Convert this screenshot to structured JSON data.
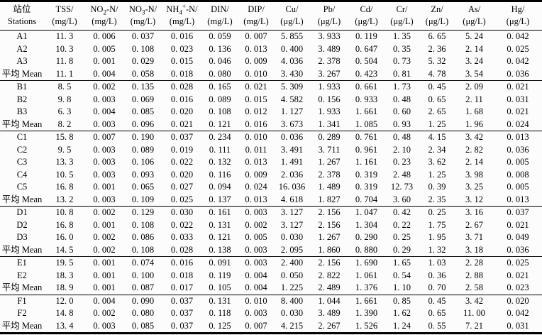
{
  "page": {
    "background": "#fcfcfc",
    "text_color": "#000000",
    "rule_color": "#000000"
  },
  "table": {
    "columns": [
      {
        "line1": [
          {
            "t": "站位"
          }
        ],
        "line2": "Stations"
      },
      {
        "line1": [
          {
            "t": "TSS/"
          }
        ],
        "line2": "(mg/L)"
      },
      {
        "line1": [
          {
            "t": "NO"
          },
          {
            "sub": "2"
          },
          {
            "t": "-N/"
          }
        ],
        "line2": "(mg/L)"
      },
      {
        "line1": [
          {
            "t": "NO"
          },
          {
            "sub": "3"
          },
          {
            "t": "-N/"
          }
        ],
        "line2": "(mg/L)"
      },
      {
        "line1": [
          {
            "t": "NH"
          },
          {
            "sub": "4"
          },
          {
            "sup": "+"
          },
          {
            "t": "-N/"
          }
        ],
        "line2": "(mg/L)"
      },
      {
        "line1": [
          {
            "t": "DIN/"
          }
        ],
        "line2": "(mg/L)"
      },
      {
        "line1": [
          {
            "t": "DIP/"
          }
        ],
        "line2": "(mg/L)"
      },
      {
        "line1": [
          {
            "t": "Cu/"
          }
        ],
        "line2": "(μg/L)"
      },
      {
        "line1": [
          {
            "t": "Pb/"
          }
        ],
        "line2": "(μg/L)"
      },
      {
        "line1": [
          {
            "t": "Cd/"
          }
        ],
        "line2": "(μg/L)"
      },
      {
        "line1": [
          {
            "t": "Cr/"
          }
        ],
        "line2": "(μg/L)"
      },
      {
        "line1": [
          {
            "t": "Zn/"
          }
        ],
        "line2": "(μg/L)"
      },
      {
        "line1": [
          {
            "t": "As/"
          }
        ],
        "line2": "(μg/L)"
      },
      {
        "line1": [
          {
            "t": "Hg/"
          }
        ],
        "line2": "(μg/L)"
      }
    ],
    "mean_label": "平均 Mean",
    "rows": [
      {
        "station": "A1",
        "is_mean": false,
        "group_end": false,
        "values": [
          "11. 3",
          "0. 006",
          "0. 037",
          "0. 016",
          "0. 059",
          "0. 007",
          "5. 855",
          "3. 933",
          "0. 119",
          "1. 35",
          "6. 65",
          "5. 24",
          "0. 042"
        ]
      },
      {
        "station": "A2",
        "is_mean": false,
        "group_end": false,
        "values": [
          "10. 3",
          "0. 005",
          "0. 108",
          "0. 023",
          "0. 136",
          "0. 013",
          "0. 400",
          "3. 489",
          "0. 647",
          "0. 35",
          "2. 36",
          "2. 14",
          "0. 025"
        ]
      },
      {
        "station": "A3",
        "is_mean": false,
        "group_end": false,
        "values": [
          "11. 8",
          "0. 001",
          "0. 029",
          "0. 015",
          "0. 046",
          "0. 009",
          "4. 036",
          "2. 378",
          "0. 504",
          "0. 73",
          "5. 32",
          "3. 24",
          "0. 042"
        ]
      },
      {
        "station": "平均 Mean",
        "is_mean": true,
        "group_end": true,
        "values": [
          "11. 1",
          "0. 004",
          "0. 058",
          "0. 018",
          "0. 080",
          "0. 010",
          "3. 430",
          "3. 267",
          "0. 423",
          "0. 81",
          "4. 78",
          "3. 54",
          "0. 036"
        ]
      },
      {
        "station": "B1",
        "is_mean": false,
        "group_end": false,
        "values": [
          "8. 5",
          "0. 002",
          "0. 135",
          "0. 028",
          "0. 165",
          "0. 021",
          "5. 309",
          "1. 933",
          "0. 661",
          "1. 73",
          "0. 45",
          "2. 09",
          "0. 021"
        ]
      },
      {
        "station": "B2",
        "is_mean": false,
        "group_end": false,
        "values": [
          "9. 8",
          "0. 003",
          "0. 069",
          "0. 016",
          "0. 089",
          "0. 015",
          "4. 582",
          "0. 156",
          "0. 933",
          "0. 48",
          "0. 65",
          "2. 11",
          "0. 031"
        ]
      },
      {
        "station": "B3",
        "is_mean": false,
        "group_end": false,
        "values": [
          "6. 3",
          "0. 004",
          "0. 085",
          "0. 020",
          "0. 108",
          "0. 012",
          "1. 127",
          "1. 933",
          "1. 661",
          "0. 60",
          "2. 65",
          "1. 68",
          "0. 021"
        ]
      },
      {
        "station": "平均 Mean",
        "is_mean": true,
        "group_end": true,
        "values": [
          "8. 2",
          "0. 003",
          "0. 096",
          "0. 021",
          "0. 121",
          "0. 016",
          "3. 673",
          "1. 341",
          "1. 085",
          "0. 93",
          "1. 25",
          "1. 96",
          "0. 024"
        ]
      },
      {
        "station": "C1",
        "is_mean": false,
        "group_end": false,
        "values": [
          "15. 8",
          "0. 007",
          "0. 190",
          "0. 037",
          "0. 234",
          "0. 010",
          "0. 036",
          "0. 289",
          "0. 761",
          "0. 48",
          "4. 15",
          "3. 42",
          "0. 013"
        ]
      },
      {
        "station": "C2",
        "is_mean": false,
        "group_end": false,
        "values": [
          "9. 5",
          "0. 003",
          "0. 089",
          "0. 019",
          "0. 111",
          "0. 011",
          "3. 491",
          "3. 711",
          "0. 961",
          "2. 10",
          "2. 34",
          "2. 82",
          "0. 036"
        ]
      },
      {
        "station": "C3",
        "is_mean": false,
        "group_end": false,
        "values": [
          "13. 3",
          "0. 003",
          "0. 106",
          "0. 022",
          "0. 132",
          "0. 013",
          "1. 491",
          "1. 267",
          "1. 161",
          "0. 23",
          "3. 62",
          "2. 14",
          "0. 005"
        ]
      },
      {
        "station": "C4",
        "is_mean": false,
        "group_end": false,
        "values": [
          "10. 5",
          "0. 003",
          "0. 093",
          "0. 020",
          "0. 116",
          "0. 009",
          "2. 036",
          "2. 378",
          "0. 319",
          "2. 48",
          "1. 25",
          "3. 98",
          "0. 008"
        ]
      },
      {
        "station": "C5",
        "is_mean": false,
        "group_end": false,
        "values": [
          "16. 8",
          "0. 001",
          "0. 065",
          "0. 027",
          "0. 094",
          "0. 024",
          "16. 036",
          "1. 489",
          "0. 319",
          "12. 73",
          "0. 39",
          "3. 25",
          "0. 005"
        ]
      },
      {
        "station": "平均 Mean",
        "is_mean": true,
        "group_end": true,
        "values": [
          "13. 2",
          "0. 003",
          "0. 109",
          "0. 025",
          "0. 137",
          "0. 013",
          "4. 618",
          "1. 827",
          "0. 704",
          "3. 60",
          "2. 35",
          "3. 12",
          "0. 013"
        ]
      },
      {
        "station": "D1",
        "is_mean": false,
        "group_end": false,
        "values": [
          "10. 8",
          "0. 002",
          "0. 129",
          "0. 030",
          "0. 161",
          "0. 003",
          "3. 127",
          "2. 156",
          "1. 047",
          "0. 42",
          "0. 25",
          "3. 16",
          "0. 037"
        ]
      },
      {
        "station": "D2",
        "is_mean": false,
        "group_end": false,
        "values": [
          "16. 8",
          "0. 001",
          "0. 108",
          "0. 022",
          "0. 131",
          "0. 002",
          "3. 127",
          "2. 156",
          "1. 304",
          "0. 22",
          "1. 75",
          "2. 67",
          "0. 021"
        ]
      },
      {
        "station": "D3",
        "is_mean": false,
        "group_end": false,
        "values": [
          "16. 0",
          "0. 002",
          "0. 086",
          "0. 033",
          "0. 121",
          "0. 005",
          "0. 030",
          "1. 267",
          "0. 290",
          "0. 25",
          "1. 95",
          "3. 71",
          "0. 049"
        ]
      },
      {
        "station": "平均 Mean",
        "is_mean": true,
        "group_end": true,
        "values": [
          "14. 5",
          "0. 002",
          "0. 108",
          "0. 028",
          "0. 138",
          "0. 003",
          "2. 095",
          "1. 860",
          "0. 880",
          "0. 29",
          "1. 32",
          "3. 18",
          "0. 036"
        ]
      },
      {
        "station": "E1",
        "is_mean": false,
        "group_end": false,
        "values": [
          "19. 5",
          "0. 001",
          "0. 074",
          "0. 016",
          "0. 091",
          "0. 003",
          "2. 400",
          "2. 156",
          "1. 690",
          "1. 65",
          "1. 03",
          "2. 28",
          "0. 025"
        ]
      },
      {
        "station": "E2",
        "is_mean": false,
        "group_end": false,
        "values": [
          "18. 3",
          "0. 001",
          "0. 100",
          "0. 018",
          "0. 119",
          "0. 004",
          "0. 050",
          "2. 822",
          "1. 061",
          "0. 54",
          "0. 36",
          "2. 88",
          "0. 021"
        ]
      },
      {
        "station": "平均 Mean",
        "is_mean": true,
        "group_end": true,
        "values": [
          "18. 9",
          "0. 001",
          "0. 087",
          "0. 017",
          "0. 105",
          "0. 004",
          "1. 225",
          "2. 489",
          "1. 376",
          "1. 10",
          "0. 70",
          "2. 58",
          "0. 023"
        ]
      },
      {
        "station": "F1",
        "is_mean": false,
        "group_end": false,
        "values": [
          "12. 0",
          "0. 004",
          "0. 090",
          "0. 037",
          "0. 131",
          "0. 010",
          "8. 400",
          "1. 044",
          "1. 661",
          "0. 85",
          "0. 45",
          "3. 42",
          "0. 020"
        ]
      },
      {
        "station": "F2",
        "is_mean": false,
        "group_end": false,
        "values": [
          "14. 8",
          "0. 002",
          "0. 080",
          "0. 037",
          "0. 118",
          "0. 003",
          "0. 030",
          "3. 489",
          "1. 390",
          "1. 62",
          "0. 65",
          "11. 00",
          "0. 042"
        ]
      },
      {
        "station": "平均 Mean",
        "is_mean": true,
        "group_end": false,
        "values": [
          "13. 4",
          "0. 003",
          "0. 085",
          "0. 037",
          "0. 125",
          "0. 007",
          "4. 215",
          "2. 267",
          "1. 526",
          "1. 24",
          "0. 55",
          "7. 21",
          "0. 031"
        ]
      }
    ]
  }
}
